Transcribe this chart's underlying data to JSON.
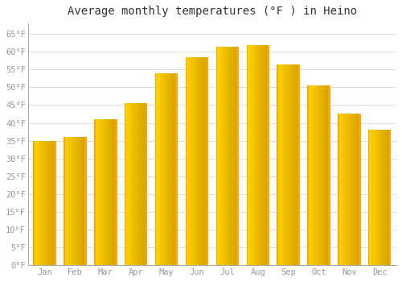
{
  "title": "Average monthly temperatures (°F ) in Heino",
  "months": [
    "Jan",
    "Feb",
    "Mar",
    "Apr",
    "May",
    "Jun",
    "Jul",
    "Aug",
    "Sep",
    "Oct",
    "Nov",
    "Dec"
  ],
  "values": [
    35,
    36,
    41,
    45.5,
    54,
    58.5,
    61.5,
    62,
    56.5,
    50.5,
    42.5,
    38
  ],
  "bar_color_main": "#FFA500",
  "bar_color_light": "#FFD000",
  "bar_color_dark": "#E08000",
  "background_color": "#FFFFFF",
  "plot_bg_color": "#FFFFFF",
  "grid_color": "#DDDDDD",
  "yticks": [
    0,
    5,
    10,
    15,
    20,
    25,
    30,
    35,
    40,
    45,
    50,
    55,
    60,
    65
  ],
  "ylim": [
    0,
    68
  ],
  "title_fontsize": 10,
  "tick_fontsize": 7.5,
  "tick_color": "#999999",
  "title_color": "#333333"
}
